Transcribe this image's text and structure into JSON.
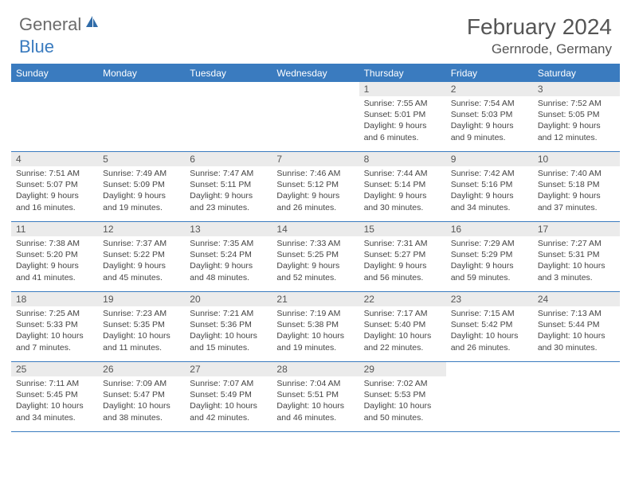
{
  "logo": {
    "text_general": "General",
    "text_blue": "Blue",
    "icon_color": "#2f6ba8"
  },
  "title": "February 2024",
  "location": "Gernrode, Germany",
  "colors": {
    "header_bg": "#3a7bbf",
    "header_text": "#ffffff",
    "daynum_bg": "#ebebeb",
    "text": "#555555",
    "body_text": "#444444",
    "border": "#3a7bbf"
  },
  "day_headers": [
    "Sunday",
    "Monday",
    "Tuesday",
    "Wednesday",
    "Thursday",
    "Friday",
    "Saturday"
  ],
  "leading_blanks": 4,
  "days": [
    {
      "n": 1,
      "sunrise": "7:55 AM",
      "sunset": "5:01 PM",
      "daylight": "9 hours and 6 minutes."
    },
    {
      "n": 2,
      "sunrise": "7:54 AM",
      "sunset": "5:03 PM",
      "daylight": "9 hours and 9 minutes."
    },
    {
      "n": 3,
      "sunrise": "7:52 AM",
      "sunset": "5:05 PM",
      "daylight": "9 hours and 12 minutes."
    },
    {
      "n": 4,
      "sunrise": "7:51 AM",
      "sunset": "5:07 PM",
      "daylight": "9 hours and 16 minutes."
    },
    {
      "n": 5,
      "sunrise": "7:49 AM",
      "sunset": "5:09 PM",
      "daylight": "9 hours and 19 minutes."
    },
    {
      "n": 6,
      "sunrise": "7:47 AM",
      "sunset": "5:11 PM",
      "daylight": "9 hours and 23 minutes."
    },
    {
      "n": 7,
      "sunrise": "7:46 AM",
      "sunset": "5:12 PM",
      "daylight": "9 hours and 26 minutes."
    },
    {
      "n": 8,
      "sunrise": "7:44 AM",
      "sunset": "5:14 PM",
      "daylight": "9 hours and 30 minutes."
    },
    {
      "n": 9,
      "sunrise": "7:42 AM",
      "sunset": "5:16 PM",
      "daylight": "9 hours and 34 minutes."
    },
    {
      "n": 10,
      "sunrise": "7:40 AM",
      "sunset": "5:18 PM",
      "daylight": "9 hours and 37 minutes."
    },
    {
      "n": 11,
      "sunrise": "7:38 AM",
      "sunset": "5:20 PM",
      "daylight": "9 hours and 41 minutes."
    },
    {
      "n": 12,
      "sunrise": "7:37 AM",
      "sunset": "5:22 PM",
      "daylight": "9 hours and 45 minutes."
    },
    {
      "n": 13,
      "sunrise": "7:35 AM",
      "sunset": "5:24 PM",
      "daylight": "9 hours and 48 minutes."
    },
    {
      "n": 14,
      "sunrise": "7:33 AM",
      "sunset": "5:25 PM",
      "daylight": "9 hours and 52 minutes."
    },
    {
      "n": 15,
      "sunrise": "7:31 AM",
      "sunset": "5:27 PM",
      "daylight": "9 hours and 56 minutes."
    },
    {
      "n": 16,
      "sunrise": "7:29 AM",
      "sunset": "5:29 PM",
      "daylight": "9 hours and 59 minutes."
    },
    {
      "n": 17,
      "sunrise": "7:27 AM",
      "sunset": "5:31 PM",
      "daylight": "10 hours and 3 minutes."
    },
    {
      "n": 18,
      "sunrise": "7:25 AM",
      "sunset": "5:33 PM",
      "daylight": "10 hours and 7 minutes."
    },
    {
      "n": 19,
      "sunrise": "7:23 AM",
      "sunset": "5:35 PM",
      "daylight": "10 hours and 11 minutes."
    },
    {
      "n": 20,
      "sunrise": "7:21 AM",
      "sunset": "5:36 PM",
      "daylight": "10 hours and 15 minutes."
    },
    {
      "n": 21,
      "sunrise": "7:19 AM",
      "sunset": "5:38 PM",
      "daylight": "10 hours and 19 minutes."
    },
    {
      "n": 22,
      "sunrise": "7:17 AM",
      "sunset": "5:40 PM",
      "daylight": "10 hours and 22 minutes."
    },
    {
      "n": 23,
      "sunrise": "7:15 AM",
      "sunset": "5:42 PM",
      "daylight": "10 hours and 26 minutes."
    },
    {
      "n": 24,
      "sunrise": "7:13 AM",
      "sunset": "5:44 PM",
      "daylight": "10 hours and 30 minutes."
    },
    {
      "n": 25,
      "sunrise": "7:11 AM",
      "sunset": "5:45 PM",
      "daylight": "10 hours and 34 minutes."
    },
    {
      "n": 26,
      "sunrise": "7:09 AM",
      "sunset": "5:47 PM",
      "daylight": "10 hours and 38 minutes."
    },
    {
      "n": 27,
      "sunrise": "7:07 AM",
      "sunset": "5:49 PM",
      "daylight": "10 hours and 42 minutes."
    },
    {
      "n": 28,
      "sunrise": "7:04 AM",
      "sunset": "5:51 PM",
      "daylight": "10 hours and 46 minutes."
    },
    {
      "n": 29,
      "sunrise": "7:02 AM",
      "sunset": "5:53 PM",
      "daylight": "10 hours and 50 minutes."
    }
  ],
  "trailing_blanks": 2,
  "labels": {
    "sunrise": "Sunrise:",
    "sunset": "Sunset:",
    "daylight": "Daylight:"
  }
}
